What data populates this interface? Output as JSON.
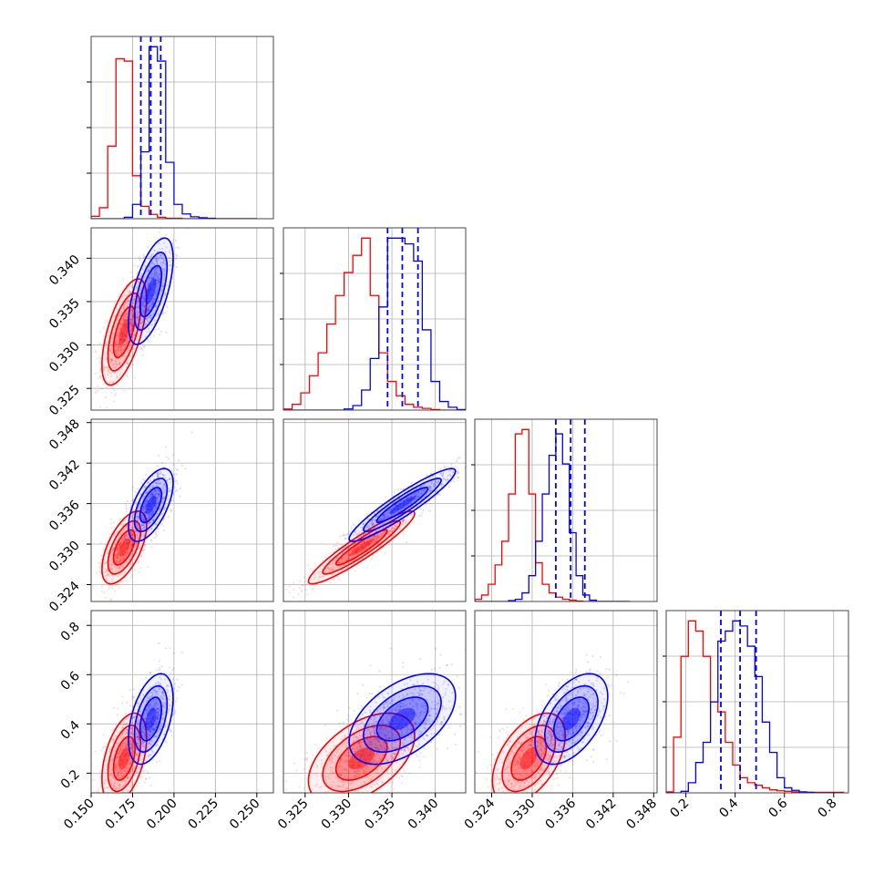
{
  "chart_data": {
    "type": "corner",
    "title": "",
    "colors": {
      "red": "#ff0000",
      "blue": "#0000ff",
      "grid": "#b0b0b0"
    },
    "parameters": [
      {
        "id": "p0",
        "range": [
          0.15,
          0.26
        ],
        "ticks": [
          0.15,
          0.175,
          0.2,
          0.225,
          0.25
        ],
        "tick_labels": [
          "0.150",
          "0.175",
          "0.200",
          "0.225",
          "0.250"
        ],
        "quantiles_blue": [
          0.18,
          0.186,
          0.192
        ]
      },
      {
        "id": "p1",
        "range": [
          0.3225,
          0.3435
        ],
        "ticks": [
          0.325,
          0.33,
          0.335,
          0.34
        ],
        "tick_labels": [
          "0.325",
          "0.330",
          "0.335",
          "0.340"
        ],
        "quantiles_blue": [
          0.3345,
          0.3362,
          0.338
        ]
      },
      {
        "id": "p2",
        "range": [
          0.3215,
          0.3485
        ],
        "ticks": [
          0.324,
          0.33,
          0.336,
          0.342,
          0.348
        ],
        "tick_labels": [
          "0.324",
          "0.330",
          "0.336",
          "0.342",
          "0.348"
        ],
        "quantiles_blue": [
          0.3335,
          0.3357,
          0.3378
        ]
      },
      {
        "id": "p3",
        "range": [
          0.12,
          0.86
        ],
        "ticks": [
          0.2,
          0.4,
          0.6,
          0.8
        ],
        "tick_labels": [
          "0.2",
          "0.4",
          "0.6",
          "0.8"
        ],
        "quantiles_blue": [
          0.342,
          0.42,
          0.485
        ]
      }
    ],
    "series": [
      {
        "color": "red",
        "mean": [
          0.17,
          0.3315,
          0.3295,
          0.26
        ],
        "std": [
          0.0055,
          0.0025,
          0.0022,
          0.075
        ]
      },
      {
        "color": "blue",
        "mean": [
          0.186,
          0.3362,
          0.3358,
          0.42
        ],
        "std": [
          0.0055,
          0.0025,
          0.0022,
          0.075
        ]
      }
    ],
    "histograms": [
      {
        "param": 0,
        "bins": [
          0.15,
          0.155,
          0.16,
          0.165,
          0.17,
          0.175,
          0.18,
          0.185,
          0.19,
          0.195,
          0.2,
          0.205,
          0.21,
          0.215,
          0.22,
          0.225,
          0.23,
          0.235,
          0.24,
          0.245,
          0.25
        ],
        "red": [
          5,
          23,
          152,
          335,
          330,
          90,
          26,
          9,
          3,
          1,
          1,
          0,
          0,
          0,
          0,
          0,
          0,
          0,
          0,
          0
        ],
        "blue": [
          0,
          0,
          0,
          0,
          3,
          30,
          140,
          360,
          330,
          118,
          30,
          10,
          4,
          2,
          1,
          0,
          0,
          0,
          0,
          0
        ]
      },
      {
        "param": 1,
        "bins": [
          0.3225,
          0.3235,
          0.3245,
          0.3255,
          0.3265,
          0.3275,
          0.3285,
          0.3295,
          0.3305,
          0.3315,
          0.3325,
          0.3335,
          0.3345,
          0.3355,
          0.3365,
          0.3375,
          0.3385,
          0.3395,
          0.3405,
          0.3415,
          0.3425,
          0.3435
        ],
        "red": [
          2,
          10,
          30,
          60,
          100,
          150,
          200,
          240,
          270,
          300,
          200,
          100,
          50,
          25,
          10,
          5,
          3,
          1,
          0,
          0,
          0
        ],
        "blue": [
          0,
          0,
          0,
          0,
          0,
          0,
          0,
          2,
          8,
          35,
          90,
          180,
          300,
          300,
          290,
          260,
          140,
          50,
          15,
          5,
          1
        ]
      },
      {
        "param": 2,
        "bins": [
          0.3215,
          0.3225,
          0.3235,
          0.3245,
          0.3255,
          0.3265,
          0.3275,
          0.3285,
          0.3295,
          0.3305,
          0.3315,
          0.3325,
          0.3335,
          0.3345,
          0.3355,
          0.3365,
          0.3375,
          0.3385,
          0.3395,
          0.3405,
          0.3415,
          0.3425,
          0.3435,
          0.3445
        ],
        "red": [
          5,
          15,
          40,
          85,
          140,
          250,
          390,
          400,
          250,
          90,
          40,
          20,
          10,
          5,
          3,
          1,
          0,
          0,
          0,
          0,
          0,
          0,
          0
        ],
        "blue": [
          0,
          0,
          0,
          0,
          0,
          2,
          5,
          20,
          60,
          140,
          250,
          340,
          390,
          320,
          160,
          60,
          15,
          3,
          0,
          0,
          0,
          0,
          0
        ]
      },
      {
        "param": 3,
        "bins": [
          0.12,
          0.15,
          0.18,
          0.21,
          0.24,
          0.27,
          0.3,
          0.33,
          0.36,
          0.39,
          0.42,
          0.45,
          0.48,
          0.51,
          0.54,
          0.57,
          0.6,
          0.63,
          0.66,
          0.69,
          0.72,
          0.75,
          0.78,
          0.81,
          0.84
        ],
        "red": [
          2,
          110,
          270,
          340,
          320,
          270,
          180,
          160,
          100,
          55,
          30,
          20,
          15,
          10,
          6,
          4,
          3,
          2,
          1,
          1,
          1,
          1,
          1,
          1
        ],
        "blue": [
          0,
          0,
          3,
          20,
          60,
          100,
          180,
          300,
          320,
          340,
          330,
          290,
          230,
          140,
          80,
          30,
          10,
          5,
          2,
          1,
          0,
          0,
          0,
          0
        ]
      }
    ]
  }
}
